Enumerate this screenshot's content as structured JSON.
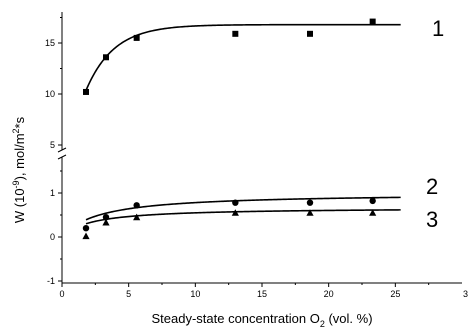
{
  "chart_data": {
    "type": "scatter",
    "title": "",
    "xlabel": "Steady-state concentration O₂ (vol. %)",
    "xlabel_main": "Steady-state concentration O",
    "xlabel_sub": "2",
    "xlabel_tail": " (vol. %)",
    "ylabel": "W (10⁻⁹), mol/m²*s",
    "ylabel_parts": [
      "W (10",
      "-9",
      "), mol/m",
      "2",
      "*s"
    ],
    "xlim": [
      0,
      30
    ],
    "x_ticks": [
      0,
      5,
      10,
      15,
      20,
      25
    ],
    "x_tick_labels": [
      "0",
      "5",
      "10",
      "15",
      "20",
      "25"
    ],
    "x_edge_label": "3",
    "y_axis_broken": true,
    "y_upper_range": [
      5,
      18
    ],
    "y_upper_ticks": [
      5,
      10,
      15
    ],
    "y_upper_tick_labels": [
      "5",
      "10",
      "15"
    ],
    "y_lower_range": [
      -1,
      2
    ],
    "y_lower_ticks": [
      -1,
      0,
      1
    ],
    "y_lower_tick_labels": [
      "-1",
      "0",
      "1"
    ],
    "grid": false,
    "legend": "none",
    "series": [
      {
        "label": "1",
        "marker": "square",
        "panel": "upper",
        "x": [
          1.8,
          3.3,
          5.6,
          13,
          18.6,
          23.3
        ],
        "y": [
          10.2,
          13.6,
          15.5,
          15.9,
          15.9,
          17.1
        ],
        "fit": {
          "form": "y0 - A*exp(-x/t)",
          "y0": 16.8,
          "A": 15.2,
          "t": 2.1
        }
      },
      {
        "label": "2",
        "marker": "circle",
        "panel": "lower",
        "x": [
          1.8,
          3.3,
          5.6,
          13,
          18.6,
          23.3
        ],
        "y": [
          0.2,
          0.45,
          0.72,
          0.78,
          0.78,
          0.82
        ],
        "fit": {
          "form": "ymax*x/(k+x)",
          "ymax": 1.0,
          "k": 2.8
        }
      },
      {
        "label": "3",
        "marker": "triangle",
        "panel": "lower",
        "x": [
          1.8,
          3.3,
          5.6,
          13,
          18.6,
          23.3
        ],
        "y": [
          0.02,
          0.33,
          0.45,
          0.55,
          0.55,
          0.55
        ],
        "fit": {
          "form": "ymax*x/(k+x)",
          "ymax": 0.67,
          "k": 2.2
        }
      }
    ]
  }
}
